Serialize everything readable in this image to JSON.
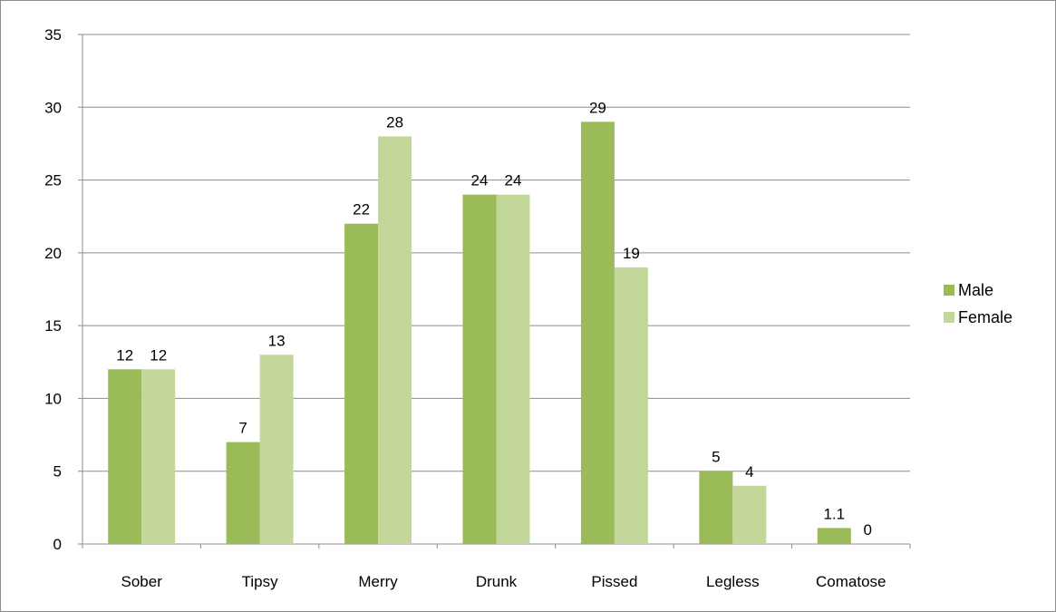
{
  "chart_data": {
    "type": "bar",
    "title": "",
    "xlabel": "",
    "ylabel": "",
    "categories": [
      "Sober",
      "Tipsy",
      "Merry",
      "Drunk",
      "Pissed",
      "Legless",
      "Comatose"
    ],
    "series": [
      {
        "name": "Male",
        "color": "#9bbb59",
        "values": [
          12,
          7,
          22,
          24,
          29,
          5,
          1.1
        ],
        "labels": [
          "12",
          "7",
          "22",
          "24",
          "29",
          "5",
          "1.1"
        ]
      },
      {
        "name": "Female",
        "color": "#c4d79b",
        "values": [
          12,
          13,
          28,
          24,
          19,
          4,
          0
        ],
        "labels": [
          "12",
          "13",
          "28",
          "24",
          "19",
          "4",
          "0"
        ]
      }
    ],
    "ylim": [
      0,
      35
    ],
    "yticks": [
      0,
      5,
      10,
      15,
      20,
      25,
      30,
      35
    ],
    "grid": true,
    "legend_position": "right"
  }
}
